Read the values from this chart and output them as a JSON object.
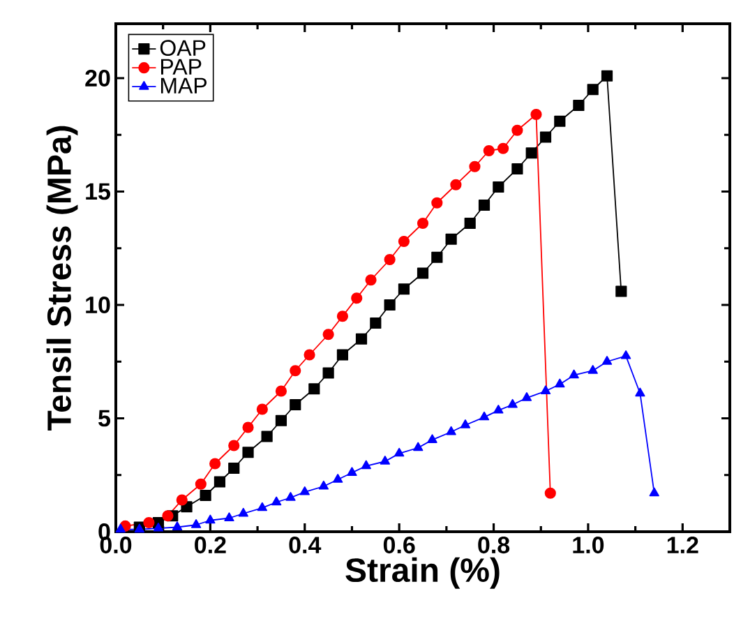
{
  "chart_data": {
    "type": "line",
    "xlabel": "Strain (%)",
    "ylabel": "Tensil Stress (MPa)",
    "xlim": [
      0,
      1.3
    ],
    "ylim": [
      0,
      22.4
    ],
    "xticks": [
      {
        "value": 0,
        "label": "0.0"
      },
      {
        "value": 0.2,
        "label": "0.2"
      },
      {
        "value": 0.4,
        "label": "0.4"
      },
      {
        "value": 0.6,
        "label": "0.6"
      },
      {
        "value": 0.8,
        "label": "0.8"
      },
      {
        "value": 1.0,
        "label": "1.0"
      },
      {
        "value": 1.2,
        "label": "1.2"
      }
    ],
    "yticks": [
      0,
      5,
      10,
      15,
      20
    ],
    "legend": "top left",
    "grid": false,
    "line_style": "solid",
    "series": [
      {
        "name": "OAP",
        "color": "#000000",
        "marker": "square",
        "x": [
          0.05,
          0.09,
          0.12,
          0.15,
          0.19,
          0.22,
          0.25,
          0.28,
          0.32,
          0.35,
          0.38,
          0.42,
          0.45,
          0.48,
          0.52,
          0.55,
          0.58,
          0.61,
          0.65,
          0.68,
          0.71,
          0.75,
          0.78,
          0.81,
          0.85,
          0.88,
          0.91,
          0.94,
          0.98,
          1.01,
          1.04,
          1.07
        ],
        "values": [
          0.2,
          0.4,
          0.7,
          1.1,
          1.6,
          2.2,
          2.8,
          3.5,
          4.2,
          4.9,
          5.6,
          6.3,
          7.0,
          7.8,
          8.5,
          9.2,
          10.0,
          10.7,
          11.4,
          12.1,
          12.9,
          13.6,
          14.4,
          15.2,
          16.0,
          16.7,
          17.4,
          18.1,
          18.8,
          19.5,
          20.1,
          10.6
        ]
      },
      {
        "name": "PAP",
        "color": "#ff0000",
        "marker": "circle",
        "x": [
          0.02,
          0.07,
          0.11,
          0.14,
          0.18,
          0.21,
          0.25,
          0.28,
          0.31,
          0.35,
          0.38,
          0.41,
          0.45,
          0.48,
          0.51,
          0.54,
          0.58,
          0.61,
          0.65,
          0.68,
          0.72,
          0.76,
          0.79,
          0.82,
          0.85,
          0.89,
          0.92
        ],
        "values": [
          0.25,
          0.4,
          0.7,
          1.4,
          2.1,
          3.0,
          3.8,
          4.6,
          5.4,
          6.2,
          7.1,
          7.8,
          8.7,
          9.5,
          10.3,
          11.1,
          12.0,
          12.8,
          13.6,
          14.5,
          15.3,
          16.1,
          16.8,
          16.9,
          17.7,
          18.4,
          1.7
        ]
      },
      {
        "name": "MAP",
        "color": "#0000ff",
        "marker": "triangle",
        "x": [
          0.01,
          0.05,
          0.09,
          0.13,
          0.17,
          0.2,
          0.24,
          0.27,
          0.31,
          0.34,
          0.37,
          0.4,
          0.44,
          0.47,
          0.5,
          0.53,
          0.57,
          0.6,
          0.64,
          0.67,
          0.71,
          0.74,
          0.78,
          0.81,
          0.84,
          0.87,
          0.91,
          0.94,
          0.97,
          1.01,
          1.04,
          1.08,
          1.11,
          1.14
        ],
        "values": [
          0.1,
          0.1,
          0.15,
          0.2,
          0.3,
          0.5,
          0.6,
          0.8,
          1.05,
          1.3,
          1.5,
          1.75,
          2.0,
          2.3,
          2.6,
          2.9,
          3.1,
          3.45,
          3.7,
          4.05,
          4.4,
          4.7,
          5.05,
          5.35,
          5.6,
          5.9,
          6.2,
          6.5,
          6.9,
          7.1,
          7.5,
          7.75,
          6.1,
          1.7
        ]
      }
    ]
  }
}
